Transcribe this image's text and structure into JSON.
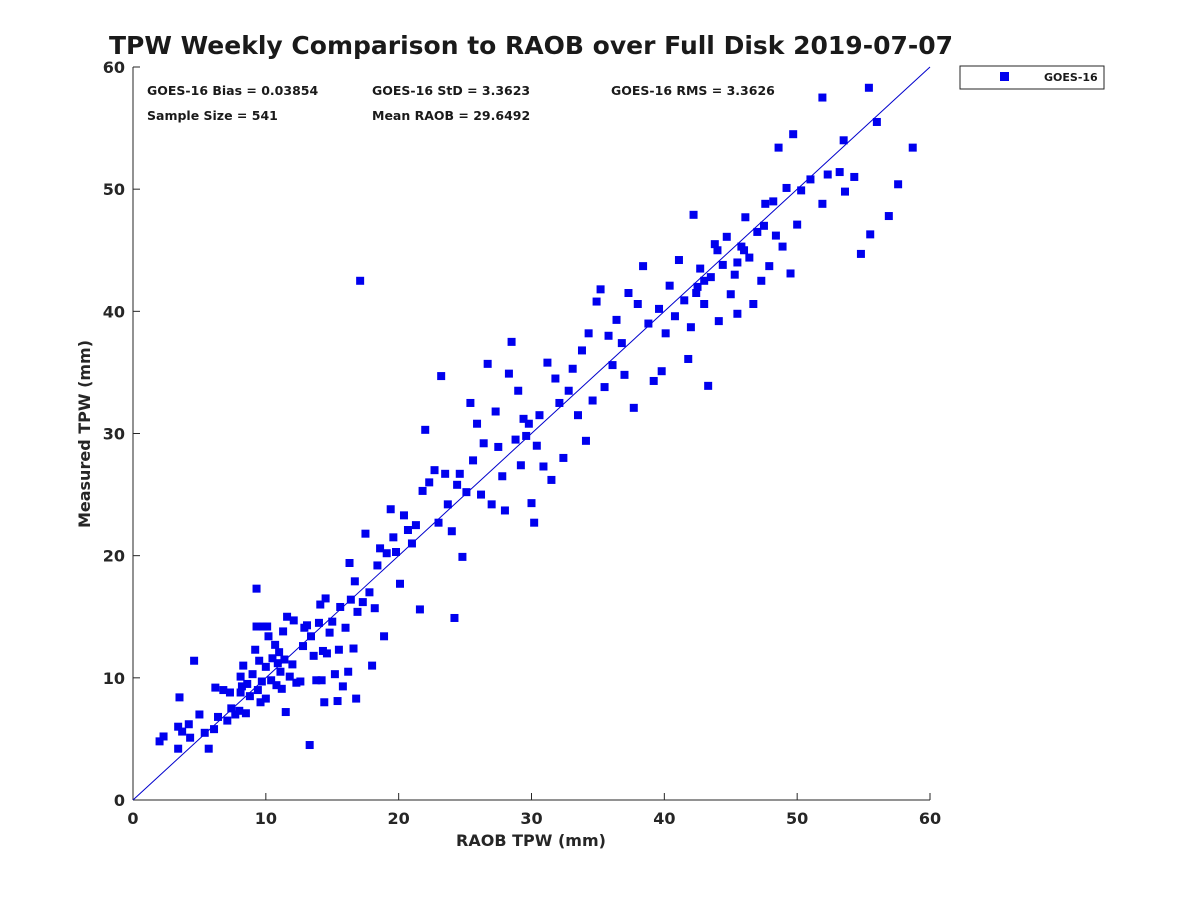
{
  "chart_data": {
    "type": "scatter",
    "title": "TPW Weekly Comparison to RAOB over Full Disk 2019-07-07",
    "xlabel": "RAOB TPW (mm)",
    "ylabel": "Measured TPW (mm)",
    "xlim": [
      0,
      60
    ],
    "ylim": [
      0,
      60
    ],
    "xticks": [
      "0",
      "10",
      "20",
      "30",
      "40",
      "50",
      "60"
    ],
    "yticks": [
      "0",
      "10",
      "20",
      "30",
      "40",
      "50",
      "60"
    ],
    "grid": false,
    "legend_position": "outside-top-right",
    "reference_line": {
      "name": "1:1",
      "x": [
        0,
        60
      ],
      "y": [
        0,
        60
      ],
      "color": "#0000cc"
    },
    "stats": [
      "GOES-16 Bias = 0.03854",
      "GOES-16 StD = 3.3623",
      "GOES-16 RMS = 3.3626",
      "Sample Size = 541",
      "Mean RAOB = 29.6492"
    ],
    "series": [
      {
        "name": "GOES-16",
        "color": "#0000ee",
        "marker": "square",
        "points": [
          [
            2.0,
            4.8
          ],
          [
            2.3,
            5.2
          ],
          [
            3.4,
            4.2
          ],
          [
            3.4,
            6.0
          ],
          [
            3.5,
            8.4
          ],
          [
            3.7,
            5.6
          ],
          [
            4.2,
            6.2
          ],
          [
            4.3,
            5.1
          ],
          [
            4.6,
            11.4
          ],
          [
            5.0,
            7.0
          ],
          [
            5.4,
            5.5
          ],
          [
            5.7,
            4.2
          ],
          [
            6.1,
            5.8
          ],
          [
            6.2,
            9.2
          ],
          [
            6.4,
            6.8
          ],
          [
            6.8,
            9.0
          ],
          [
            7.1,
            6.5
          ],
          [
            7.3,
            8.8
          ],
          [
            7.4,
            7.5
          ],
          [
            7.7,
            7.0
          ],
          [
            8.0,
            7.3
          ],
          [
            8.1,
            8.8
          ],
          [
            8.1,
            10.1
          ],
          [
            8.2,
            9.3
          ],
          [
            8.3,
            11.0
          ],
          [
            8.5,
            7.1
          ],
          [
            8.6,
            9.5
          ],
          [
            8.8,
            8.5
          ],
          [
            9.0,
            10.3
          ],
          [
            9.2,
            12.3
          ],
          [
            9.3,
            14.2
          ],
          [
            9.3,
            17.3
          ],
          [
            9.4,
            9.0
          ],
          [
            9.5,
            11.4
          ],
          [
            9.6,
            8.0
          ],
          [
            9.7,
            9.7
          ],
          [
            9.8,
            14.2
          ],
          [
            10.0,
            8.3
          ],
          [
            10.0,
            10.9
          ],
          [
            10.1,
            14.2
          ],
          [
            10.2,
            13.4
          ],
          [
            10.4,
            9.8
          ],
          [
            10.5,
            11.6
          ],
          [
            10.7,
            12.7
          ],
          [
            10.8,
            9.4
          ],
          [
            10.9,
            11.2
          ],
          [
            11.0,
            12.1
          ],
          [
            11.1,
            10.5
          ],
          [
            11.2,
            9.1
          ],
          [
            11.3,
            13.8
          ],
          [
            11.4,
            11.5
          ],
          [
            11.5,
            7.2
          ],
          [
            11.6,
            15.0
          ],
          [
            11.8,
            10.1
          ],
          [
            12.0,
            11.1
          ],
          [
            12.1,
            14.7
          ],
          [
            12.3,
            9.6
          ],
          [
            12.6,
            9.7
          ],
          [
            12.8,
            12.6
          ],
          [
            12.9,
            14.1
          ],
          [
            13.1,
            14.3
          ],
          [
            13.3,
            4.5
          ],
          [
            13.4,
            13.4
          ],
          [
            13.6,
            11.8
          ],
          [
            13.8,
            9.8
          ],
          [
            14.0,
            14.5
          ],
          [
            14.1,
            16.0
          ],
          [
            14.2,
            9.8
          ],
          [
            14.3,
            12.2
          ],
          [
            14.4,
            8.0
          ],
          [
            14.5,
            16.5
          ],
          [
            14.6,
            12.0
          ],
          [
            14.8,
            13.7
          ],
          [
            15.0,
            14.6
          ],
          [
            15.2,
            10.3
          ],
          [
            15.4,
            8.1
          ],
          [
            15.5,
            12.3
          ],
          [
            15.6,
            15.8
          ],
          [
            15.8,
            9.3
          ],
          [
            16.0,
            14.1
          ],
          [
            16.2,
            10.5
          ],
          [
            16.3,
            19.4
          ],
          [
            16.4,
            16.4
          ],
          [
            16.6,
            12.4
          ],
          [
            16.7,
            17.9
          ],
          [
            16.8,
            8.3
          ],
          [
            16.9,
            15.4
          ],
          [
            17.1,
            42.5
          ],
          [
            17.3,
            16.2
          ],
          [
            17.5,
            21.8
          ],
          [
            17.8,
            17.0
          ],
          [
            18.0,
            11.0
          ],
          [
            18.2,
            15.7
          ],
          [
            18.4,
            19.2
          ],
          [
            18.6,
            20.6
          ],
          [
            18.9,
            13.4
          ],
          [
            19.1,
            20.2
          ],
          [
            19.4,
            23.8
          ],
          [
            19.6,
            21.5
          ],
          [
            19.8,
            20.3
          ],
          [
            20.1,
            17.7
          ],
          [
            20.4,
            23.3
          ],
          [
            20.7,
            22.1
          ],
          [
            21.0,
            21.0
          ],
          [
            21.3,
            22.5
          ],
          [
            21.6,
            15.6
          ],
          [
            21.8,
            25.3
          ],
          [
            22.0,
            30.3
          ],
          [
            22.3,
            26.0
          ],
          [
            22.7,
            27.0
          ],
          [
            23.0,
            22.7
          ],
          [
            23.2,
            34.7
          ],
          [
            23.5,
            26.7
          ],
          [
            23.7,
            24.2
          ],
          [
            24.0,
            22.0
          ],
          [
            24.2,
            14.9
          ],
          [
            24.4,
            25.8
          ],
          [
            24.6,
            26.7
          ],
          [
            24.8,
            19.9
          ],
          [
            25.1,
            25.2
          ],
          [
            25.4,
            32.5
          ],
          [
            25.6,
            27.8
          ],
          [
            25.9,
            30.8
          ],
          [
            26.2,
            25.0
          ],
          [
            26.4,
            29.2
          ],
          [
            26.7,
            35.7
          ],
          [
            27.0,
            24.2
          ],
          [
            27.3,
            31.8
          ],
          [
            27.5,
            28.9
          ],
          [
            27.8,
            26.5
          ],
          [
            28.0,
            23.7
          ],
          [
            28.3,
            34.9
          ],
          [
            28.5,
            37.5
          ],
          [
            28.8,
            29.5
          ],
          [
            29.0,
            33.5
          ],
          [
            29.2,
            27.4
          ],
          [
            29.4,
            31.2
          ],
          [
            29.6,
            29.8
          ],
          [
            29.8,
            30.8
          ],
          [
            30.0,
            24.3
          ],
          [
            30.2,
            22.7
          ],
          [
            30.4,
            29.0
          ],
          [
            30.6,
            31.5
          ],
          [
            30.9,
            27.3
          ],
          [
            31.2,
            35.8
          ],
          [
            31.5,
            26.2
          ],
          [
            31.8,
            34.5
          ],
          [
            32.1,
            32.5
          ],
          [
            32.4,
            28.0
          ],
          [
            32.8,
            33.5
          ],
          [
            33.1,
            35.3
          ],
          [
            33.5,
            31.5
          ],
          [
            33.8,
            36.8
          ],
          [
            34.1,
            29.4
          ],
          [
            34.3,
            38.2
          ],
          [
            34.6,
            32.7
          ],
          [
            34.9,
            40.8
          ],
          [
            35.2,
            41.8
          ],
          [
            35.5,
            33.8
          ],
          [
            35.8,
            38.0
          ],
          [
            36.1,
            35.6
          ],
          [
            36.4,
            39.3
          ],
          [
            36.8,
            37.4
          ],
          [
            37.0,
            34.8
          ],
          [
            37.3,
            41.5
          ],
          [
            37.7,
            32.1
          ],
          [
            38.0,
            40.6
          ],
          [
            38.4,
            43.7
          ],
          [
            38.8,
            39.0
          ],
          [
            39.2,
            34.3
          ],
          [
            39.6,
            40.2
          ],
          [
            39.8,
            35.1
          ],
          [
            40.1,
            38.2
          ],
          [
            40.4,
            42.1
          ],
          [
            40.8,
            39.6
          ],
          [
            41.1,
            44.2
          ],
          [
            41.5,
            40.9
          ],
          [
            41.8,
            36.1
          ],
          [
            42.0,
            38.7
          ],
          [
            42.2,
            47.9
          ],
          [
            42.4,
            41.5
          ],
          [
            42.7,
            43.5
          ],
          [
            43.0,
            40.6
          ],
          [
            43.3,
            33.9
          ],
          [
            43.5,
            42.8
          ],
          [
            43.8,
            45.5
          ],
          [
            44.1,
            39.2
          ],
          [
            44.4,
            43.8
          ],
          [
            44.7,
            46.1
          ],
          [
            45.0,
            41.4
          ],
          [
            45.3,
            43.0
          ],
          [
            45.5,
            39.8
          ],
          [
            45.8,
            45.3
          ],
          [
            46.1,
            47.7
          ],
          [
            46.4,
            44.4
          ],
          [
            46.7,
            40.6
          ],
          [
            47.0,
            46.5
          ],
          [
            47.3,
            42.5
          ],
          [
            47.6,
            48.8
          ],
          [
            47.9,
            43.7
          ],
          [
            48.2,
            49.0
          ],
          [
            48.4,
            46.2
          ],
          [
            48.6,
            53.4
          ],
          [
            48.9,
            45.3
          ],
          [
            49.2,
            50.1
          ],
          [
            49.5,
            43.1
          ],
          [
            49.7,
            54.5
          ],
          [
            50.0,
            47.1
          ],
          [
            50.3,
            49.9
          ],
          [
            51.0,
            50.8
          ],
          [
            51.9,
            57.5
          ],
          [
            51.9,
            48.8
          ],
          [
            52.3,
            51.2
          ],
          [
            53.2,
            51.4
          ],
          [
            53.5,
            54.0
          ],
          [
            53.6,
            49.8
          ],
          [
            54.3,
            51.0
          ],
          [
            54.8,
            44.7
          ],
          [
            55.4,
            58.3
          ],
          [
            55.5,
            46.3
          ],
          [
            56.0,
            55.5
          ],
          [
            56.9,
            47.8
          ],
          [
            57.6,
            50.4
          ],
          [
            58.7,
            53.4
          ],
          [
            44.0,
            45.0
          ],
          [
            43.0,
            42.5
          ],
          [
            46.0,
            45.0
          ],
          [
            47.5,
            47.0
          ],
          [
            45.5,
            44.0
          ],
          [
            42.5,
            42.0
          ]
        ]
      }
    ]
  }
}
